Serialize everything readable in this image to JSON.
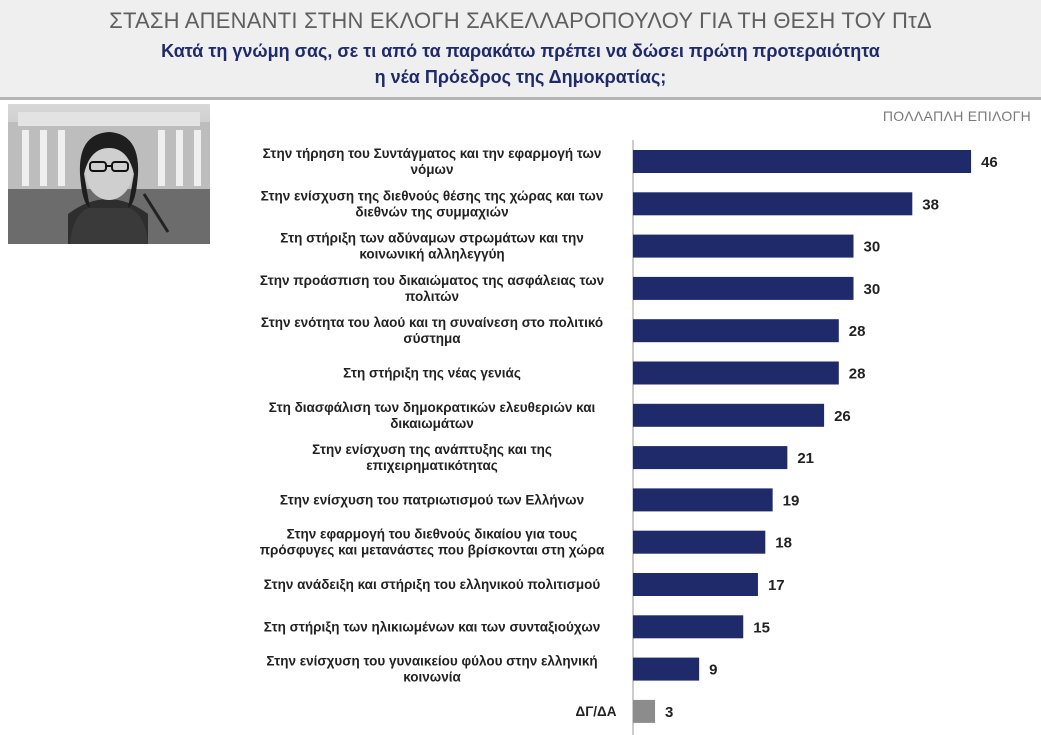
{
  "header": {
    "title": "ΣΤΑΣΗ ΑΠΕΝΑΝΤΙ ΣΤΗΝ ΕΚΛΟΓΗ ΣΑΚΕΛΛΑΡΟΠΟΥΛΟΥ ΓΙΑ ΤΗ ΘΕΣΗ ΤΟΥ ΠτΔ",
    "subtitle_line1": "Κατά τη γνώμη σας, σε τι από τα παρακάτω πρέπει να δώσει πρώτη προτεραιότητα",
    "subtitle_line2": "η νέα Πρόεδρος της Δημοκρατίας;"
  },
  "mode_note": "ΠΟΛΛΑΠΛΗ ΕΠΙΛΟΓΗ",
  "colors": {
    "bar": "#1f2a6b",
    "bar_na": "#8c8c8c",
    "header_bg": "#efefef"
  },
  "chart_data": {
    "type": "bar",
    "orientation": "horizontal",
    "categories": [
      [
        "Στην τήρηση του Συντάγματος και την εφαρμογή των",
        "νόμων"
      ],
      [
        "Στην ενίσχυση της διεθνούς θέσης της χώρας και των",
        "διεθνών της συμμαχιών"
      ],
      [
        "Στη στήριξη των αδύναμων στρωμάτων και την",
        "κοινωνική αλληλεγγύη"
      ],
      [
        "Στην προάσπιση του δικαιώματος της ασφάλειας των",
        "πολιτών"
      ],
      [
        "Στην ενότητα του λαού και τη συναίνεση στο πολιτικό",
        "σύστημα"
      ],
      [
        "Στη στήριξη της νέας γενιάς"
      ],
      [
        "Στη διασφάλιση των δημοκρατικών ελευθεριών και",
        "δικαιωμάτων"
      ],
      [
        "Στην ενίσχυση της ανάπτυξης και της",
        "επιχειρηματικότητας"
      ],
      [
        "Στην ενίσχυση του πατριωτισμού των Ελλήνων"
      ],
      [
        "Στην εφαρμογή του διεθνούς δικαίου για τους",
        "πρόσφυγες και μετανάστες που βρίσκονται στη χώρα"
      ],
      [
        "Στην ανάδειξη και στήριξη του ελληνικού πολιτισμού"
      ],
      [
        "Στη στήριξη των ηλικιωμένων και των συνταξιούχων"
      ],
      [
        "Στην ενίσχυση του γυναικείου φύλου στην ελληνική",
        "κοινωνία"
      ],
      [
        "ΔΓ/ΔΑ"
      ]
    ],
    "values": [
      46,
      38,
      30,
      30,
      28,
      28,
      26,
      21,
      19,
      18,
      17,
      15,
      9,
      3
    ],
    "highlight_last_as_na": true
  }
}
